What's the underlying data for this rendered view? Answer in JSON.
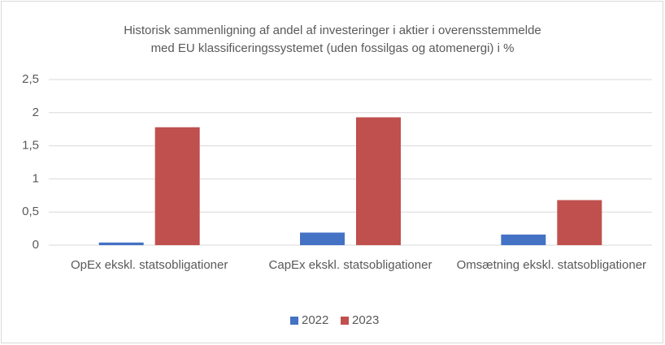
{
  "chart_data": {
    "type": "bar",
    "title": [
      "Historisk sammenligning af andel af investeringer i aktier i overensstemmelde",
      "med EU klassificeringssystemet (uden fossilgas og atomenergi) i %"
    ],
    "categories": [
      "OpEx ekskl. statsobligationer",
      "CapEx ekskl. statsobligationer",
      "Omsætning ekskl. statsobligationer"
    ],
    "series": [
      {
        "name": "2022",
        "color": "#4472c4",
        "values": [
          0.04,
          0.19,
          0.16
        ]
      },
      {
        "name": "2023",
        "color": "#c0504d",
        "values": [
          1.78,
          1.93,
          0.68
        ]
      }
    ],
    "ylim": [
      0,
      2.5
    ],
    "yticks": [
      0,
      {
        "value": 0.5,
        "label": "0,5"
      },
      1,
      {
        "value": 1.5,
        "label": "1,5"
      },
      2,
      {
        "value": 2.5,
        "label": "2,5"
      }
    ],
    "grid": true,
    "legend": "bottom"
  }
}
